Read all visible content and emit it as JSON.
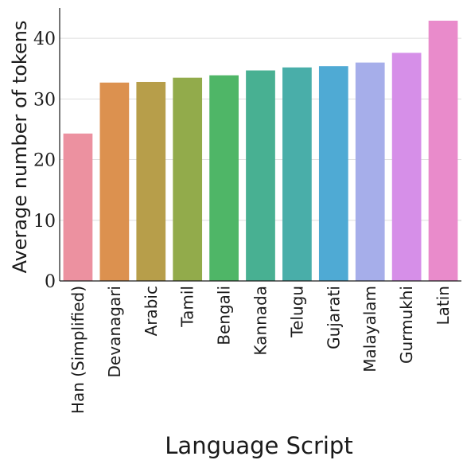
{
  "chart_data": {
    "type": "bar",
    "title": "",
    "xlabel": "Language Script",
    "ylabel": "Average number of tokens",
    "categories": [
      "Han (Simplified)",
      "Devanagari",
      "Arabic",
      "Tamil",
      "Bengali",
      "Kannada",
      "Telugu",
      "Gujarati",
      "Malayalam",
      "Gurmukhi",
      "Latin"
    ],
    "values": [
      24.3,
      32.7,
      32.8,
      33.5,
      33.9,
      34.7,
      35.2,
      35.4,
      36.0,
      37.6,
      42.9
    ],
    "colors": [
      "#ec91a0",
      "#dc914f",
      "#b79e4a",
      "#92ab4b",
      "#4fb667",
      "#48b092",
      "#49aea9",
      "#4faad4",
      "#a6aeea",
      "#d68fe8",
      "#e98bcb"
    ],
    "ylim": [
      0,
      45
    ],
    "yticks": [
      0,
      10,
      20,
      30,
      40
    ],
    "grid": true,
    "legend": "none"
  }
}
